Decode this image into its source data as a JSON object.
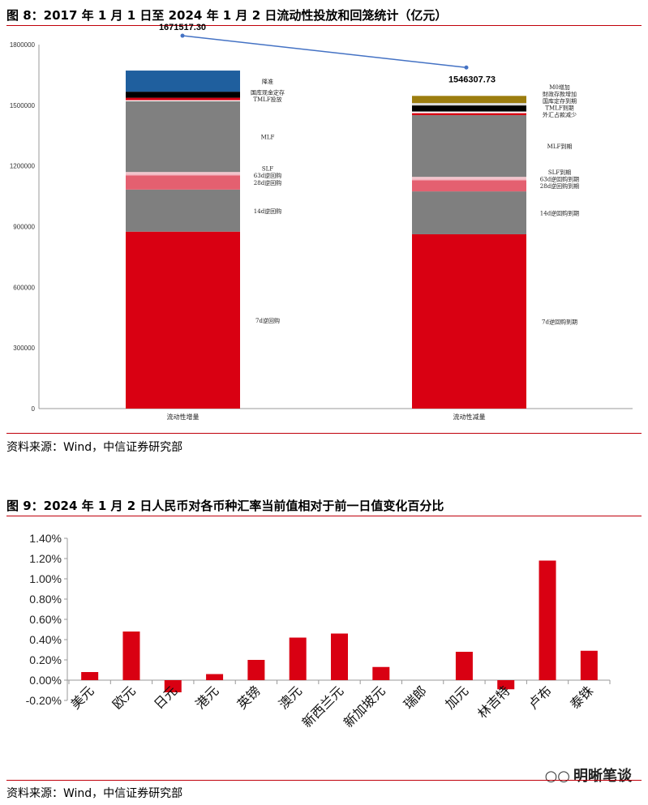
{
  "fig8": {
    "title": "图 8：2017 年 1 月 1 日至 2024 年 1 月 2 日流动性投放和回笼统计（亿元）",
    "source": "资料来源：Wind，中信证券研究部"
  },
  "fig9": {
    "title": "图 9：2024 年 1 月 2 日人民币对各币种汇率当前值相对于前一日值变化百分比",
    "source": "资料来源：Wind，中信证券研究部"
  },
  "watermark": {
    "icon": "wechat-icon",
    "text": "明晰笔谈"
  },
  "colors": {
    "accent": "#c0000a",
    "bar_red": "#d90012"
  },
  "chart_data": [
    {
      "type": "bar",
      "stacked": true,
      "title": "",
      "xlabel": "",
      "ylabel": "",
      "ylim": [
        0,
        1800000
      ],
      "yticks": [
        "0",
        "300000",
        "600000",
        "900000",
        "1200000",
        "1500000",
        "1800000"
      ],
      "grid": false,
      "categories": [
        "流动性增量",
        "流动性减量"
      ],
      "totals": [
        1671517.3,
        1546307.73
      ],
      "total_labels": [
        "1671517.30",
        "1546307.73"
      ],
      "stacks": [
        {
          "name": "流动性增量",
          "segments": [
            {
              "label": "7d逆回购",
              "value": 875000,
              "color": "#d90012"
            },
            {
              "label": "14d逆回购",
              "value": 208000,
              "color": "#7f7f7f"
            },
            {
              "label": "28d逆回购",
              "value": 70000,
              "color": "#e46070"
            },
            {
              "label": "63d逆回购",
              "value": 5000,
              "color": "#f2a9b5"
            },
            {
              "label": "SLF",
              "value": 12000,
              "color": "#f2c4cc"
            },
            {
              "label": "MLF",
              "value": 350000,
              "color": "#808080"
            },
            {
              "label": "",
              "value": 5000,
              "color": "#ffffff"
            },
            {
              "label": "TMLF投放",
              "value": 12000,
              "color": "#d90012"
            },
            {
              "label": "国库现金定存",
              "value": 30000,
              "color": "#000000"
            },
            {
              "label": "降准",
              "value": 104517.3,
              "color": "#1f5f9e"
            }
          ]
        },
        {
          "name": "流动性减量",
          "segments": [
            {
              "label": "7d逆回购到期",
              "value": 862000,
              "color": "#d90012"
            },
            {
              "label": "14d逆回购到期",
              "value": 212000,
              "color": "#7f7f7f"
            },
            {
              "label": "28d逆回购到期",
              "value": 55000,
              "color": "#e46070"
            },
            {
              "label": "63d逆回购到期",
              "value": 5000,
              "color": "#f2a9b5"
            },
            {
              "label": "SLF到期",
              "value": 12000,
              "color": "#f2c4cc"
            },
            {
              "label": "MLF到期",
              "value": 305000,
              "color": "#808080"
            },
            {
              "label": "外汇占款减少",
              "value": 10000,
              "color": "#d90012"
            },
            {
              "label": "TMLF到期",
              "value": 8000,
              "color": "#ffffff"
            },
            {
              "label": "国库定存到期",
              "value": 30000,
              "color": "#000000"
            },
            {
              "label": "財政存款增加",
              "value": 12000,
              "color": "#d9d9d9"
            },
            {
              "label": "M0增加",
              "value": 35307.73,
              "color": "#9c7d0f"
            }
          ]
        }
      ]
    },
    {
      "type": "bar",
      "title": "",
      "xlabel": "",
      "ylabel": "",
      "ylim": [
        -0.2,
        1.4
      ],
      "yticks": [
        "-0.20%",
        "0.00%",
        "0.20%",
        "0.40%",
        "0.60%",
        "0.80%",
        "1.00%",
        "1.20%",
        "1.40%"
      ],
      "grid": false,
      "categories": [
        "美元",
        "欧元",
        "日元",
        "港元",
        "英镑",
        "澳元",
        "新西兰元",
        "新加坡元",
        "瑞郎",
        "加元",
        "林吉特",
        "卢布",
        "泰铢"
      ],
      "series": [
        {
          "values": [
            0.08,
            0.48,
            -0.12,
            0.06,
            0.2,
            0.42,
            0.46,
            0.13,
            0.0,
            0.28,
            -0.09,
            1.18,
            0.29
          ]
        }
      ]
    }
  ]
}
